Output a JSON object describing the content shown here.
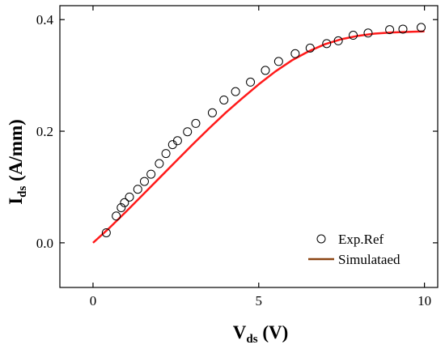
{
  "chart_data": {
    "type": "scatter",
    "xlabel": {
      "main": "V",
      "sub": "ds",
      "unit": " (V)"
    },
    "ylabel": {
      "main": "I",
      "sub": "ds",
      "unit": " (A/mm)"
    },
    "xlim": [
      -1.0,
      10.4
    ],
    "ylim": [
      -0.08,
      0.425
    ],
    "xticks": [
      0,
      5,
      10
    ],
    "yticks": [
      0.0,
      0.2,
      0.4
    ],
    "ytick_labels": [
      "0.0",
      "0.2",
      "0.4"
    ],
    "xtick_labels": [
      "0",
      "5",
      "10"
    ],
    "grid": false,
    "legend_position": "bottom-right",
    "series": [
      {
        "name": "Exp.Ref",
        "kind": "markers",
        "marker": "open-circle",
        "color": "#000000",
        "x": [
          0.4,
          0.7,
          0.85,
          0.95,
          1.1,
          1.35,
          1.55,
          1.75,
          2.0,
          2.2,
          2.4,
          2.55,
          2.85,
          3.1,
          3.6,
          3.95,
          4.3,
          4.75,
          5.2,
          5.6,
          6.1,
          6.55,
          7.05,
          7.4,
          7.85,
          8.3,
          8.95,
          9.35,
          9.9
        ],
        "y": [
          0.018,
          0.048,
          0.063,
          0.072,
          0.082,
          0.096,
          0.11,
          0.123,
          0.142,
          0.16,
          0.176,
          0.183,
          0.199,
          0.214,
          0.233,
          0.256,
          0.271,
          0.288,
          0.309,
          0.325,
          0.339,
          0.349,
          0.357,
          0.362,
          0.372,
          0.376,
          0.382,
          0.383,
          0.386
        ]
      },
      {
        "name": "Simulataed",
        "kind": "line",
        "color": "#ff1a1a",
        "legend_color": "#8b4513",
        "x": [
          0,
          0.5,
          1,
          1.5,
          2,
          2.5,
          3,
          3.5,
          4,
          4.5,
          5,
          5.5,
          6,
          6.5,
          7,
          7.5,
          8,
          8.5,
          9,
          9.5,
          10
        ],
        "y": [
          0.0,
          0.027,
          0.056,
          0.086,
          0.116,
          0.146,
          0.176,
          0.205,
          0.233,
          0.259,
          0.284,
          0.307,
          0.327,
          0.343,
          0.356,
          0.365,
          0.371,
          0.375,
          0.377,
          0.378,
          0.379
        ]
      }
    ]
  }
}
